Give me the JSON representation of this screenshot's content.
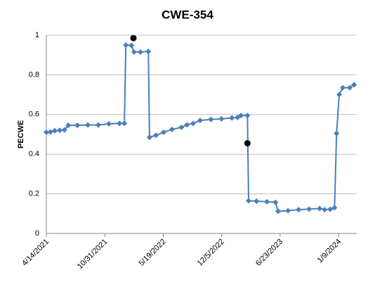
{
  "chart_data": {
    "type": "line",
    "title": "CWE-354",
    "y_label": "PECWE",
    "series": [
      {
        "color": "#4a7ebb",
        "marker": "diamond",
        "line": true,
        "x": [
          "2021-04-14",
          "2021-04-28",
          "2021-05-13",
          "2021-05-30",
          "2021-06-15",
          "2021-06-28",
          "2021-07-29",
          "2021-09-03",
          "2021-10-09",
          "2021-11-14",
          "2021-12-20",
          "2022-01-06",
          "2022-01-11",
          "2022-01-30",
          "2022-02-08",
          "2022-03-02",
          "2022-03-29",
          "2022-04-02",
          "2022-04-24",
          "2022-05-20",
          "2022-06-18",
          "2022-07-20",
          "2022-08-08",
          "2022-08-29",
          "2022-09-22",
          "2022-10-29",
          "2022-12-04",
          "2023-01-09",
          "2023-01-28",
          "2023-02-09",
          "2023-03-03",
          "2023-03-07",
          "2023-04-03",
          "2023-05-09",
          "2023-06-07",
          "2023-06-16",
          "2023-07-20",
          "2023-08-25",
          "2023-09-30",
          "2023-11-05",
          "2023-11-22",
          "2023-12-11",
          "2023-12-26",
          "2024-01-02",
          "2024-01-11",
          "2024-01-23",
          "2024-02-16",
          "2024-03-02"
        ],
        "values": [
          0.51,
          0.512,
          0.518,
          0.52,
          0.522,
          0.545,
          0.545,
          0.547,
          0.547,
          0.553,
          0.555,
          0.555,
          0.95,
          0.948,
          0.915,
          0.915,
          0.918,
          0.485,
          0.495,
          0.51,
          0.525,
          0.535,
          0.548,
          0.555,
          0.57,
          0.575,
          0.578,
          0.583,
          0.585,
          0.595,
          0.595,
          0.165,
          0.163,
          0.16,
          0.157,
          0.112,
          0.115,
          0.12,
          0.123,
          0.126,
          0.12,
          0.122,
          0.13,
          0.505,
          0.7,
          0.735,
          0.735,
          0.75
        ]
      },
      {
        "color": "#000000",
        "marker": "circle",
        "line": false,
        "x": [
          "2022-02-06",
          "2023-03-03"
        ],
        "values": [
          0.985,
          0.455
        ]
      }
    ],
    "xlim": [
      "2021-04-14",
      "2024-03-11"
    ],
    "xticks": [
      {
        "value": "2021-04-14",
        "label": "4/14/2021"
      },
      {
        "value": "2021-10-31",
        "label": "10/31/2021"
      },
      {
        "value": "2022-05-19",
        "label": "5/19/2022"
      },
      {
        "value": "2022-12-05",
        "label": "12/5/2022"
      },
      {
        "value": "2023-06-23",
        "label": "6/23/2023"
      },
      {
        "value": "2024-01-09",
        "label": "1/9/2024"
      }
    ],
    "ylim": [
      0,
      1
    ],
    "yticks": [
      0,
      0.2,
      0.4,
      0.6,
      0.8,
      1
    ],
    "grid": true
  }
}
